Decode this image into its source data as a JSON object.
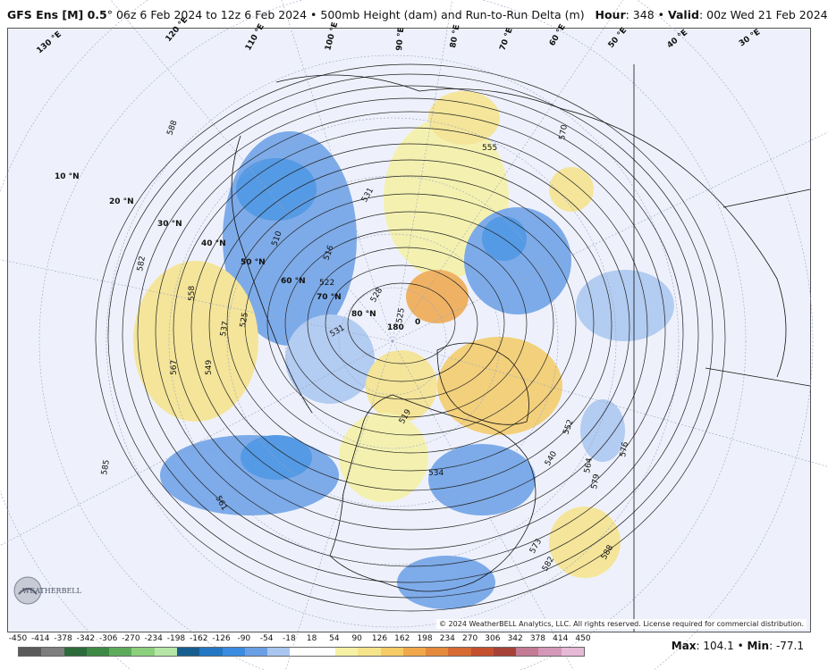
{
  "header": {
    "model": "GFS Ens [M] 0.5",
    "degree": "°",
    "run_range": " 06z 6 Feb 2024 to 12z 6 Feb 2024",
    "separator1": " • ",
    "field": "500mb Height (dam) and Run-to-Run Delta (m)",
    "hour_label": "Hour",
    "hour_value": ": 348",
    "separator2": " • ",
    "valid_label": "Valid",
    "valid_value": ": 00z Wed 21 Feb 2024"
  },
  "map": {
    "latitude_labels": [
      "10 °N",
      "20 °N",
      "30 °N",
      "40 °N",
      "50 °N",
      "60 °N",
      "70 °N",
      "80 °N"
    ],
    "longitude_labels": [
      "130 °E",
      "120 °E",
      "110 °E",
      "100 °E",
      "90 °E",
      "80 °E",
      "70 °E",
      "60 °E",
      "50 °E",
      "40 °E",
      "30 °E",
      "180",
      "0"
    ],
    "contour_labels": [
      "588",
      "582",
      "585",
      "567",
      "549",
      "537",
      "525",
      "558",
      "561",
      "510",
      "516",
      "522",
      "528",
      "531",
      "525",
      "555",
      "531",
      "570",
      "552",
      "540",
      "564",
      "576",
      "579",
      "573",
      "582",
      "588",
      "534",
      "519"
    ],
    "copyright": "© 2024 WeatherBELL Analytics, LLC. All rights reserved. License required for commercial distribution.",
    "logo_text": "WEATHERBELL"
  },
  "legend": {
    "ticks": [
      "-450",
      "-414",
      "-378",
      "-342",
      "-306",
      "-270",
      "-234",
      "-198",
      "-162",
      "-126",
      "-90",
      "-54",
      "-18",
      "18",
      "54",
      "90",
      "126",
      "162",
      "198",
      "234",
      "270",
      "306",
      "342",
      "378",
      "414",
      "450"
    ],
    "colors": [
      "#5a5a5a",
      "#7e7e7e",
      "#2e6b3a",
      "#3e8a44",
      "#5eab5c",
      "#8cd07d",
      "#b6e6a5",
      "#175e90",
      "#2377c4",
      "#3b8be0",
      "#6a9fe6",
      "#a9c6f0",
      "#ffffff",
      "#ffffff",
      "#f6f1a4",
      "#f6e48a",
      "#f5cb66",
      "#f0a84a",
      "#e58a3c",
      "#d86a33",
      "#c4502e",
      "#a74238",
      "#c37a94",
      "#d497b8",
      "#e6b9d6"
    ]
  },
  "stats": {
    "max_label": "Max",
    "max_value": ": 104.1",
    "sep": " • ",
    "min_label": "Min",
    "min_value": ": -77.1"
  }
}
